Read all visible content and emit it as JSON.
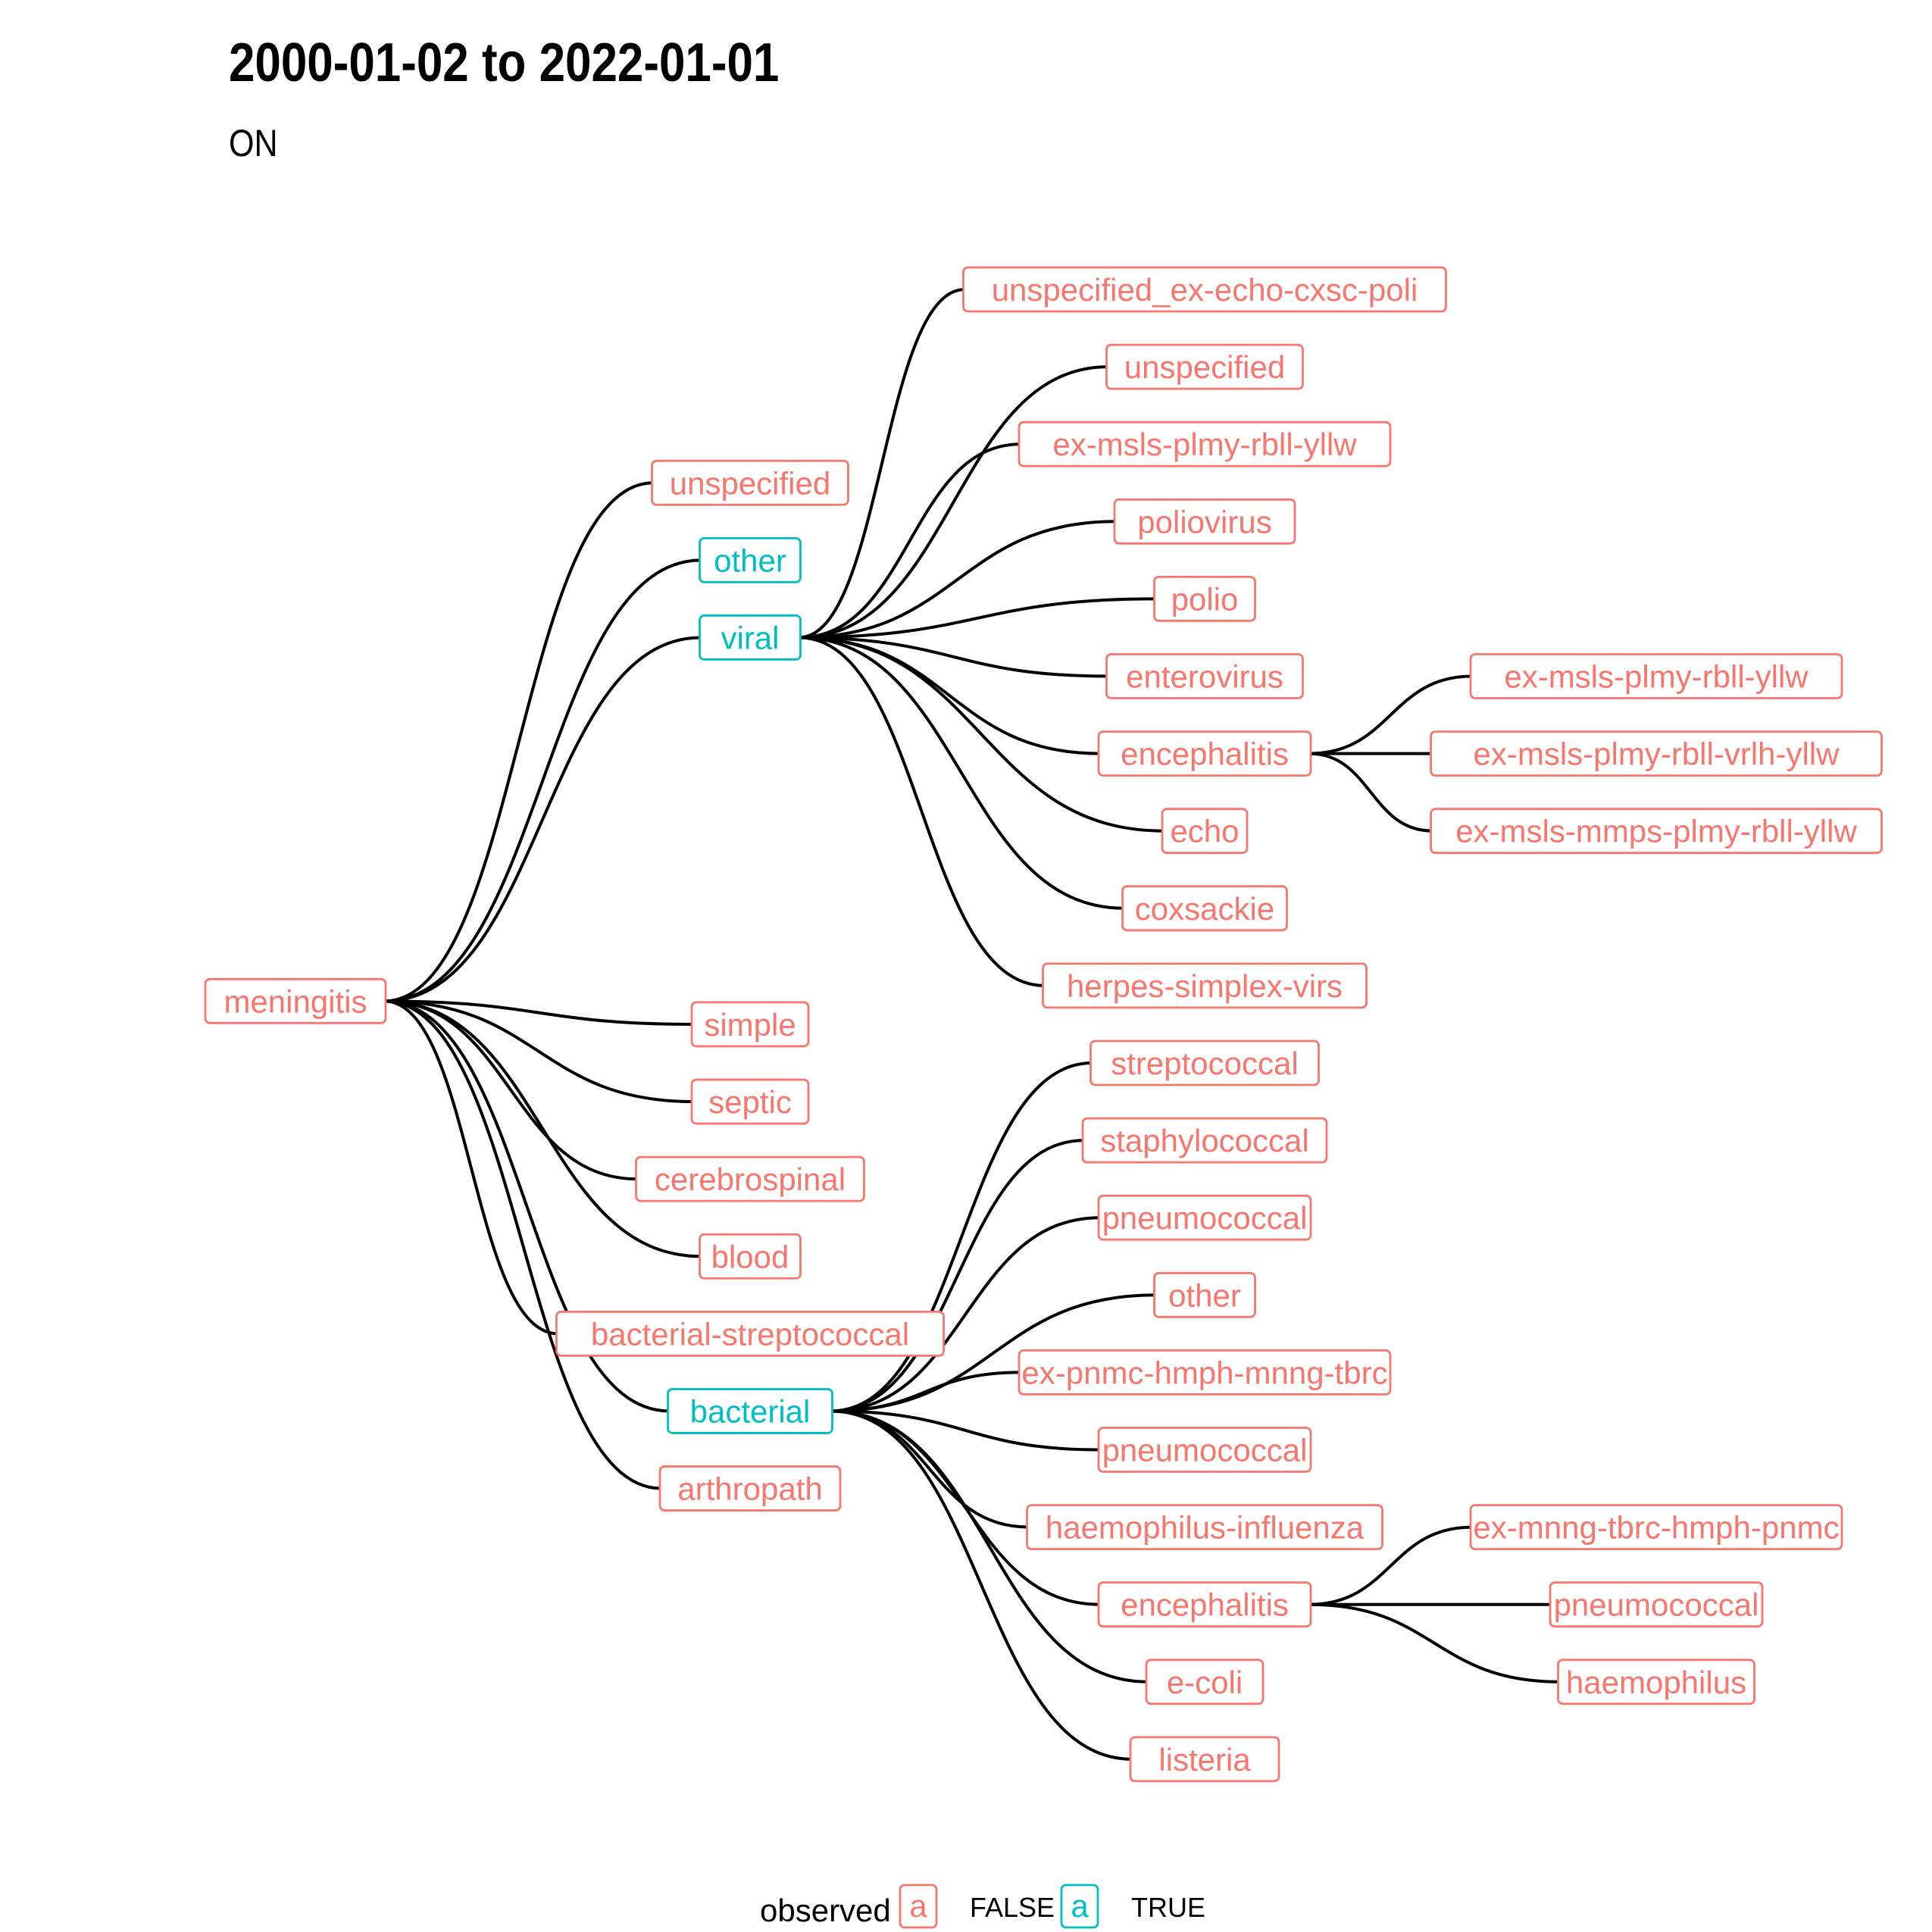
{
  "title": "2000-01-02 to 2022-01-01",
  "subtitle": "ON",
  "colors": {
    "false": "#F8766D",
    "true": "#00BFC4"
  },
  "legend": {
    "title": "observed",
    "key_glyph": "a",
    "items": [
      {
        "label": "FALSE",
        "observed": false
      },
      {
        "label": "TRUE",
        "observed": true
      }
    ]
  },
  "tree": {
    "label": "meningitis",
    "observed": false,
    "children": [
      {
        "label": "unspecified",
        "observed": false
      },
      {
        "label": "other",
        "observed": true
      },
      {
        "label": "viral",
        "observed": true,
        "children": [
          {
            "label": "unspecified_ex-echo-cxsc-poli",
            "observed": false
          },
          {
            "label": "unspecified",
            "observed": false
          },
          {
            "label": "ex-msls-plmy-rbll-yllw",
            "observed": false
          },
          {
            "label": "poliovirus",
            "observed": false
          },
          {
            "label": "polio",
            "observed": false
          },
          {
            "label": "enterovirus",
            "observed": false
          },
          {
            "label": "encephalitis",
            "observed": false,
            "children": [
              {
                "label": "ex-msls-plmy-rbll-yllw",
                "observed": false
              },
              {
                "label": "ex-msls-plmy-rbll-vrlh-yllw",
                "observed": false
              },
              {
                "label": "ex-msls-mmps-plmy-rbll-yllw",
                "observed": false
              }
            ]
          },
          {
            "label": "echo",
            "observed": false
          },
          {
            "label": "coxsackie",
            "observed": false
          },
          {
            "label": "herpes-simplex-virs",
            "observed": false
          }
        ]
      },
      {
        "label": "simple",
        "observed": false
      },
      {
        "label": "septic",
        "observed": false
      },
      {
        "label": "cerebrospinal",
        "observed": false
      },
      {
        "label": "blood",
        "observed": false
      },
      {
        "label": "bacterial-streptococcal",
        "observed": false
      },
      {
        "label": "bacterial",
        "observed": true,
        "children": [
          {
            "label": "streptococcal",
            "observed": false
          },
          {
            "label": "staphylococcal",
            "observed": false
          },
          {
            "label": "pneumococcal",
            "observed": false
          },
          {
            "label": "other",
            "observed": false
          },
          {
            "label": "ex-pnmc-hmph-mnng-tbrc",
            "observed": false
          },
          {
            "label": "pneumococcal",
            "observed": false
          },
          {
            "label": "haemophilus-influenza",
            "observed": false
          },
          {
            "label": "encephalitis",
            "observed": false,
            "children": [
              {
                "label": "ex-mnng-tbrc-hmph-pnmc",
                "observed": false
              },
              {
                "label": "pneumococcal",
                "observed": false
              },
              {
                "label": "haemophilus",
                "observed": false
              }
            ]
          },
          {
            "label": "e-coli",
            "observed": false
          },
          {
            "label": "listeria",
            "observed": false
          }
        ]
      },
      {
        "label": "arthropath",
        "observed": false
      }
    ]
  }
}
